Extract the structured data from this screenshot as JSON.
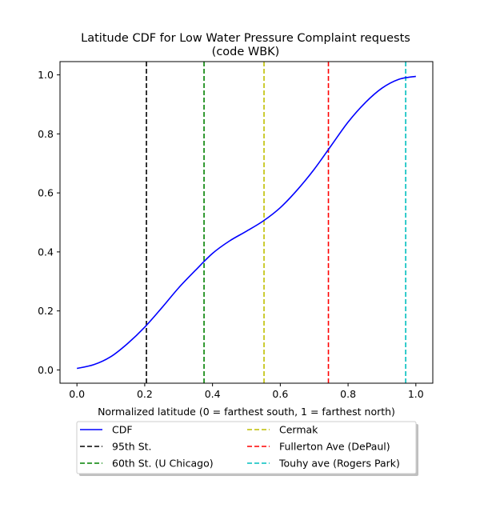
{
  "chart_data": {
    "type": "line",
    "title_line1": "Latitude CDF for Low Water Pressure Complaint  requests",
    "title_line2": "(code WBK)",
    "xlabel": "Normalized latitude (0 = farthest south, 1 = farthest north)",
    "ylabel": "",
    "xlim": [
      -0.05,
      1.05
    ],
    "ylim": [
      -0.045,
      1.045
    ],
    "xticks": [
      0.0,
      0.2,
      0.4,
      0.6,
      0.8,
      1.0
    ],
    "xtick_labels": [
      "0.0",
      "0.2",
      "0.4",
      "0.6",
      "0.8",
      "1.0"
    ],
    "yticks": [
      0.0,
      0.2,
      0.4,
      0.6,
      0.8,
      1.0
    ],
    "ytick_labels": [
      "0.0",
      "0.2",
      "0.4",
      "0.6",
      "0.8",
      "1.0"
    ],
    "grid": false,
    "legend_position": "below plot, two columns",
    "series": [
      {
        "name": "CDF",
        "color": "#0000ff",
        "x": [
          0.0,
          0.05,
          0.1,
          0.15,
          0.2,
          0.25,
          0.3,
          0.35,
          0.4,
          0.45,
          0.5,
          0.55,
          0.6,
          0.65,
          0.7,
          0.75,
          0.8,
          0.85,
          0.9,
          0.95,
          1.0
        ],
        "y": [
          0.005,
          0.018,
          0.045,
          0.09,
          0.145,
          0.21,
          0.278,
          0.338,
          0.395,
          0.437,
          0.47,
          0.505,
          0.55,
          0.61,
          0.68,
          0.76,
          0.84,
          0.905,
          0.955,
          0.985,
          0.995
        ]
      }
    ],
    "vlines": [
      {
        "name": "95th St.",
        "x": 0.205,
        "color": "#000000"
      },
      {
        "name": "60th St. (U Chicago)",
        "x": 0.375,
        "color": "#008000"
      },
      {
        "name": "Cermak",
        "x": 0.552,
        "color": "#bfbf00"
      },
      {
        "name": "Fullerton Ave (DePaul)",
        "x": 0.742,
        "color": "#ff0000"
      },
      {
        "name": "Touhy ave (Rogers Park)",
        "x": 0.97,
        "color": "#00bfbf"
      }
    ]
  }
}
